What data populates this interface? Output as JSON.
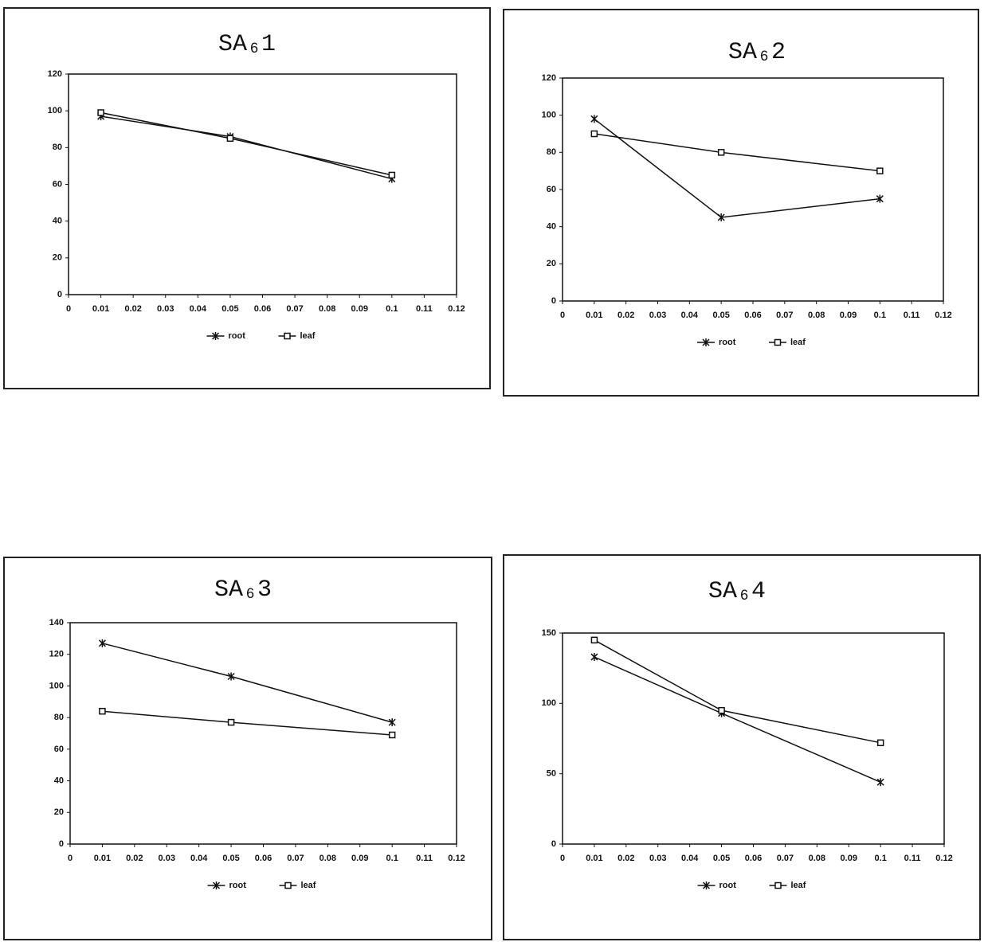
{
  "chart_data": [
    {
      "type": "line",
      "title": "SA₆1",
      "x": [
        0.01,
        0.05,
        0.1
      ],
      "series": [
        {
          "name": "root",
          "color": "#111111",
          "marker": "asterisk",
          "values": [
            97,
            86,
            63
          ]
        },
        {
          "name": "leaf",
          "color": "#111111",
          "marker": "square",
          "values": [
            99,
            85,
            65
          ]
        }
      ],
      "xlim": [
        0,
        0.12
      ],
      "xticks": [
        0,
        0.01,
        0.02,
        0.03,
        0.04,
        0.05,
        0.06,
        0.07,
        0.08,
        0.09,
        0.1,
        0.11,
        0.12
      ],
      "ylim": [
        0,
        120
      ],
      "yticks": [
        0,
        20,
        40,
        60,
        80,
        100,
        120
      ],
      "legend": "bottom"
    },
    {
      "type": "line",
      "title": "SA₆2",
      "x": [
        0.01,
        0.05,
        0.1
      ],
      "series": [
        {
          "name": "root",
          "color": "#111111",
          "marker": "asterisk",
          "values": [
            98,
            45,
            55
          ]
        },
        {
          "name": "leaf",
          "color": "#111111",
          "marker": "square",
          "values": [
            90,
            80,
            70
          ]
        }
      ],
      "xlim": [
        0,
        0.12
      ],
      "xticks": [
        0,
        0.01,
        0.02,
        0.03,
        0.04,
        0.05,
        0.06,
        0.07,
        0.08,
        0.09,
        0.1,
        0.11,
        0.12
      ],
      "ylim": [
        0,
        120
      ],
      "yticks": [
        0,
        20,
        40,
        60,
        80,
        100,
        120
      ],
      "legend": "bottom"
    },
    {
      "type": "line",
      "title": "SA₆3",
      "x": [
        0.01,
        0.05,
        0.1
      ],
      "series": [
        {
          "name": "root",
          "color": "#111111",
          "marker": "asterisk",
          "values": [
            127,
            106,
            77
          ]
        },
        {
          "name": "leaf",
          "color": "#111111",
          "marker": "square",
          "values": [
            84,
            77,
            69
          ]
        }
      ],
      "xlim": [
        0,
        0.12
      ],
      "xticks": [
        0,
        0.01,
        0.02,
        0.03,
        0.04,
        0.05,
        0.06,
        0.07,
        0.08,
        0.09,
        0.1,
        0.11,
        0.12
      ],
      "ylim": [
        0,
        140
      ],
      "yticks": [
        0,
        20,
        40,
        60,
        80,
        100,
        120,
        140
      ],
      "legend": "bottom"
    },
    {
      "type": "line",
      "title": "SA₆4",
      "x": [
        0.01,
        0.05,
        0.1
      ],
      "series": [
        {
          "name": "root",
          "color": "#111111",
          "marker": "asterisk",
          "values": [
            133,
            93,
            44
          ]
        },
        {
          "name": "leaf",
          "color": "#111111",
          "marker": "square",
          "values": [
            145,
            95,
            72
          ]
        }
      ],
      "xlim": [
        0,
        0.12
      ],
      "xticks": [
        0,
        0.01,
        0.02,
        0.03,
        0.04,
        0.05,
        0.06,
        0.07,
        0.08,
        0.09,
        0.1,
        0.11,
        0.12
      ],
      "ylim": [
        0,
        150
      ],
      "yticks": [
        0,
        50,
        100,
        150
      ],
      "legend": "bottom"
    }
  ]
}
